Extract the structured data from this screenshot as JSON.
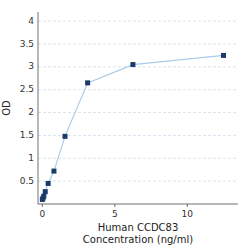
{
  "chart_data": {
    "type": "line",
    "xlabel": "Human CCDC83\nConcentration (ng/ml)",
    "ylabel": "OD",
    "x": [
      0,
      0.05,
      0.1,
      0.2,
      0.4,
      0.8,
      1.5625,
      3.125,
      6.25,
      12.5
    ],
    "values": [
      0.1,
      0.13,
      0.17,
      0.27,
      0.45,
      0.72,
      1.48,
      2.65,
      3.05,
      3.25
    ],
    "color": "#aacce8",
    "colors": [
      "#1b3a6b",
      "#1b3a6b",
      "#1b3a6b",
      "#1b3a6b",
      "#1b3a6b",
      "#1b3a6b",
      "#1b3a6b",
      "#1b3a6b",
      "#1b3a6b",
      "#1b3a6b"
    ],
    "marker": "square",
    "line_style": "solid",
    "xlim": [
      -0.3,
      13.5
    ],
    "ylim": [
      0,
      4.2
    ],
    "xticks": [
      0,
      5,
      10
    ],
    "yticks": [
      0.5,
      1,
      1.5,
      2,
      2.5,
      3,
      3.5,
      4
    ],
    "grid": true
  }
}
